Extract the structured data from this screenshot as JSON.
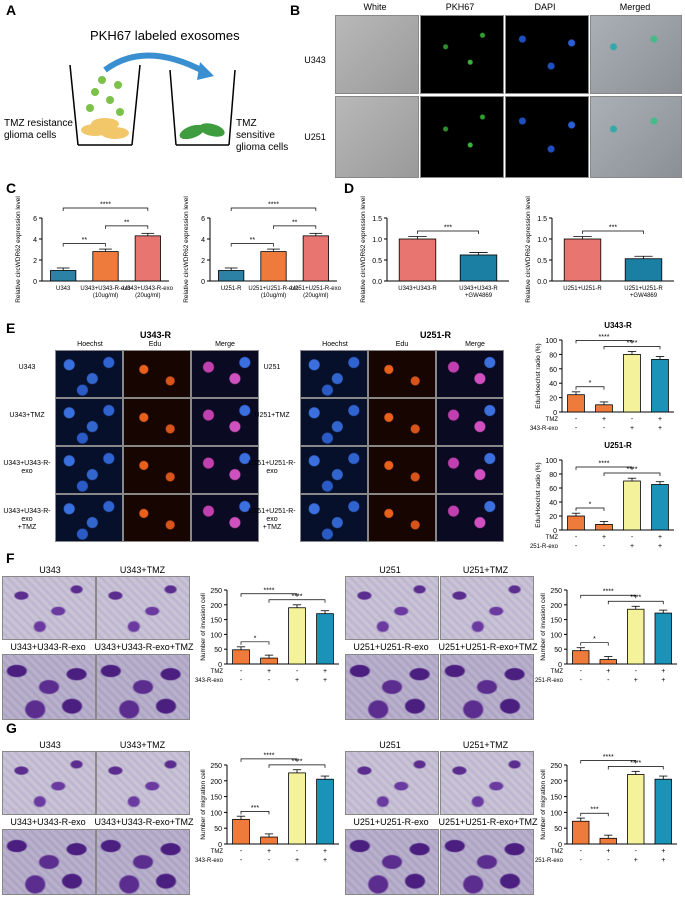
{
  "panels": {
    "A": "A",
    "B": "B",
    "C": "C",
    "D": "D",
    "E": "E",
    "F": "F",
    "G": "G"
  },
  "panelA": {
    "title": "PKH67  labeled exosomes",
    "left": "TMZ resistance glioma cells",
    "right": "TMZ sensitive glioma cells"
  },
  "panelB": {
    "columns": [
      "White",
      "PKH67",
      "DAPI",
      "Merged"
    ],
    "rows": [
      "U343",
      "U251"
    ]
  },
  "panelE": {
    "block1_title": "U343-R",
    "block2_title": "U251-R",
    "col_headers": [
      "Hoechst",
      "Edu",
      "Merge"
    ],
    "rows_left": [
      "U343",
      "U343+TMZ",
      "U343+U343-R-exo",
      "U343+U343-R-exo\n+TMZ"
    ],
    "rows_right": [
      "U251",
      "U251+TMZ",
      "U251+U251-R-exo",
      "U251+U251-R-exo\n+TMZ"
    ]
  },
  "panelF": {
    "left_labels": [
      "U343",
      "U343+TMZ",
      "U343+U343-R-exo",
      "U343+U343-R-exo+TMZ"
    ],
    "right_labels": [
      "U251",
      "U251+TMZ",
      "U251+U251-R-exo",
      "U251+U251-R-exo+TMZ"
    ]
  },
  "panelG": {
    "left_labels": [
      "U343",
      "U343+TMZ",
      "U343+U343-R-exo",
      "U343+U343-R-exo+TMZ"
    ],
    "right_labels": [
      "U251",
      "U251+TMZ",
      "U251+U251-R-exo",
      "U251+U251-R-exo+TMZ"
    ]
  },
  "colors": {
    "orange": "#ee7a3c",
    "red": "#e8756f",
    "blue": "#2b82a5",
    "teal": "#1b93b8",
    "yellow": "#f4f29a"
  },
  "chart_data": [
    {
      "id": "C1",
      "type": "bar",
      "ylabel": "Relative circWDR62 expression level",
      "ylim": [
        0,
        6
      ],
      "categories": [
        "U343",
        "U343+U343-R-exo\n(10ug/ml)",
        "U343+U343-R-exo\n(20ug/ml)"
      ],
      "values": [
        1.0,
        2.8,
        4.3
      ],
      "colors": [
        "#2b82a5",
        "#ee7a3c",
        "#e8756f"
      ],
      "sig": [
        {
          "a": 0,
          "b": 1,
          "t": "**"
        },
        {
          "a": 1,
          "b": 2,
          "t": "**"
        },
        {
          "a": 0,
          "b": 2,
          "t": "****"
        }
      ]
    },
    {
      "id": "C2",
      "type": "bar",
      "ylabel": "Relative circWDR62 expression level",
      "ylim": [
        0,
        6
      ],
      "categories": [
        "U251-R",
        "U251+U251-R-exo\n(10ug/ml)",
        "U251+U251-R-exo\n(20ug/ml)"
      ],
      "values": [
        1.0,
        2.8,
        4.3
      ],
      "colors": [
        "#2b82a5",
        "#ee7a3c",
        "#e8756f"
      ],
      "sig": [
        {
          "a": 0,
          "b": 1,
          "t": "**"
        },
        {
          "a": 1,
          "b": 2,
          "t": "**"
        },
        {
          "a": 0,
          "b": 2,
          "t": "****"
        }
      ]
    },
    {
      "id": "D1",
      "type": "bar",
      "ylabel": "Relative circWDR62 expression level",
      "ylim": [
        0,
        1.5
      ],
      "yticks": [
        "0.0",
        "0.5",
        "1.0",
        "1.5"
      ],
      "categories": [
        "U343+U343-R",
        "U343+U343-R\n+GW4869"
      ],
      "values": [
        1.0,
        0.62
      ],
      "colors": [
        "#e8756f",
        "#1b7fa3"
      ],
      "sig": [
        {
          "a": 0,
          "b": 1,
          "t": "***"
        }
      ]
    },
    {
      "id": "D2",
      "type": "bar",
      "ylabel": "Relative circWDR62 expression level",
      "ylim": [
        0,
        1.5
      ],
      "yticks": [
        "0.0",
        "0.5",
        "1.0",
        "1.5"
      ],
      "categories": [
        "U251+U251-R",
        "U251+U251-R\n+GW4869"
      ],
      "values": [
        1.0,
        0.53
      ],
      "colors": [
        "#e8756f",
        "#1b7fa3"
      ],
      "sig": [
        {
          "a": 0,
          "b": 1,
          "t": "***"
        }
      ]
    },
    {
      "id": "E1",
      "type": "bar",
      "title": "U343-R",
      "ylabel": "Edu/Hoechst radio (%)",
      "ylim": [
        0,
        100
      ],
      "values": [
        24,
        10,
        80,
        73
      ],
      "colors": [
        "#ee7a3c",
        "#ee7a3c",
        "#f4f29a",
        "#1b93b8"
      ],
      "rows": [
        {
          "name": "TMZ",
          "v": [
            "-",
            "+",
            "-",
            "+"
          ]
        },
        {
          "name": "U343-R-exo",
          "v": [
            "-",
            "-",
            "+",
            "+"
          ]
        }
      ],
      "sig": [
        {
          "a": 0,
          "b": 1,
          "t": "*"
        },
        {
          "a": 0,
          "b": 2,
          "t": "****"
        },
        {
          "a": 1,
          "b": 3,
          "t": "****"
        }
      ]
    },
    {
      "id": "E2",
      "type": "bar",
      "title": "U251-R",
      "ylabel": "Edu/Hoechst radio (%)",
      "ylim": [
        0,
        100
      ],
      "values": [
        20,
        8,
        70,
        65
      ],
      "colors": [
        "#ee7a3c",
        "#ee7a3c",
        "#f4f29a",
        "#1b93b8"
      ],
      "rows": [
        {
          "name": "TMZ",
          "v": [
            "-",
            "+",
            "-",
            "+"
          ]
        },
        {
          "name": "U251-R-exo",
          "v": [
            "-",
            "-",
            "+",
            "+"
          ]
        }
      ],
      "sig": [
        {
          "a": 0,
          "b": 1,
          "t": "*"
        },
        {
          "a": 0,
          "b": 2,
          "t": "****"
        },
        {
          "a": 1,
          "b": 3,
          "t": "****"
        }
      ]
    },
    {
      "id": "F1",
      "type": "bar",
      "ylabel": "Number of invasion cell",
      "ylim": [
        0,
        250
      ],
      "values": [
        48,
        20,
        190,
        170
      ],
      "colors": [
        "#ee7a3c",
        "#ee7a3c",
        "#f4f29a",
        "#1b93b8"
      ],
      "rows": [
        {
          "name": "TMZ",
          "v": [
            "-",
            "+",
            "-",
            "+"
          ]
        },
        {
          "name": "U343-R-exo",
          "v": [
            "-",
            "-",
            "+",
            "+"
          ]
        }
      ],
      "sig": [
        {
          "a": 0,
          "b": 1,
          "t": "*"
        },
        {
          "a": 0,
          "b": 2,
          "t": "****"
        },
        {
          "a": 1,
          "b": 3,
          "t": "****"
        }
      ]
    },
    {
      "id": "F2",
      "type": "bar",
      "ylabel": "Number of invasion cell",
      "ylim": [
        0,
        250
      ],
      "values": [
        45,
        15,
        185,
        172
      ],
      "colors": [
        "#ee7a3c",
        "#ee7a3c",
        "#f4f29a",
        "#1b93b8"
      ],
      "rows": [
        {
          "name": "TMZ",
          "v": [
            "-",
            "+",
            "-",
            "+"
          ]
        },
        {
          "name": "U251-R-exo",
          "v": [
            "-",
            "-",
            "+",
            "+"
          ]
        }
      ],
      "sig": [
        {
          "a": 0,
          "b": 1,
          "t": "*"
        },
        {
          "a": 0,
          "b": 2,
          "t": "****"
        },
        {
          "a": 1,
          "b": 3,
          "t": "****"
        }
      ]
    },
    {
      "id": "G1",
      "type": "bar",
      "ylabel": "Number of migration cell",
      "ylim": [
        0,
        250
      ],
      "values": [
        78,
        22,
        225,
        205
      ],
      "colors": [
        "#ee7a3c",
        "#ee7a3c",
        "#f4f29a",
        "#1b93b8"
      ],
      "rows": [
        {
          "name": "TMZ",
          "v": [
            "-",
            "+",
            "-",
            "+"
          ]
        },
        {
          "name": "U343-R-exo",
          "v": [
            "-",
            "-",
            "+",
            "+"
          ]
        }
      ],
      "sig": [
        {
          "a": 0,
          "b": 1,
          "t": "***"
        },
        {
          "a": 0,
          "b": 2,
          "t": "****"
        },
        {
          "a": 1,
          "b": 3,
          "t": "****"
        }
      ]
    },
    {
      "id": "G2",
      "type": "bar",
      "ylabel": "Number of migration cell",
      "ylim": [
        0,
        250
      ],
      "values": [
        72,
        18,
        220,
        205
      ],
      "colors": [
        "#ee7a3c",
        "#ee7a3c",
        "#f4f29a",
        "#1b93b8"
      ],
      "rows": [
        {
          "name": "TMZ",
          "v": [
            "-",
            "+",
            "-",
            "+"
          ]
        },
        {
          "name": "U251-R-exo",
          "v": [
            "-",
            "-",
            "+",
            "+"
          ]
        }
      ],
      "sig": [
        {
          "a": 0,
          "b": 1,
          "t": "***"
        },
        {
          "a": 0,
          "b": 2,
          "t": "****"
        },
        {
          "a": 1,
          "b": 3,
          "t": "****"
        }
      ]
    }
  ]
}
